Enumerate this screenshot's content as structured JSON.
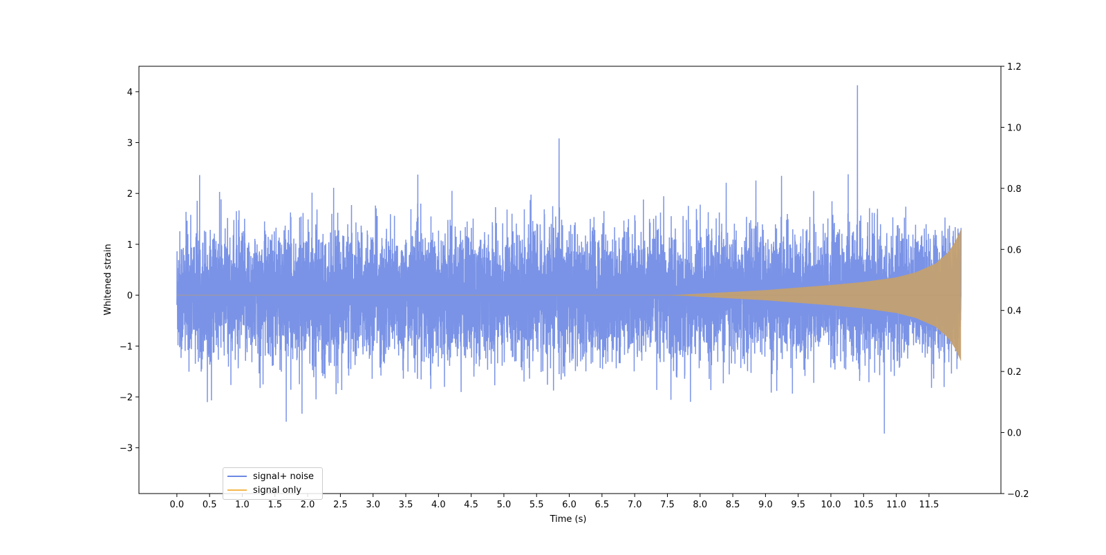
{
  "chart_data": {
    "type": "line",
    "xlabel": "Time (s)",
    "ylabel": "Whitened strain",
    "xlim": [
      -0.58,
      12.6
    ],
    "ylim": [
      -3.9,
      4.5
    ],
    "y2lim": [
      -0.2,
      1.2
    ],
    "x_ticks": [
      "0.0",
      "0.5",
      "1.0",
      "1.5",
      "2.0",
      "2.5",
      "3.0",
      "3.5",
      "4.0",
      "4.5",
      "5.0",
      "5.5",
      "6.0",
      "6.5",
      "7.0",
      "7.5",
      "8.0",
      "8.5",
      "9.0",
      "9.5",
      "10.0",
      "10.5",
      "11.0",
      "11.5"
    ],
    "y_ticks": [
      "−3",
      "−2",
      "−1",
      "0",
      "1",
      "2",
      "3",
      "4"
    ],
    "y2_ticks": [
      "−0.2",
      "0.0",
      "0.2",
      "0.4",
      "0.6",
      "0.8",
      "1.0",
      "1.2"
    ],
    "duration": 12.0,
    "series": [
      {
        "name": "signal+ noise",
        "color": "#6b87e3",
        "description": "Gaussian-like noise with amplitude roughly ±1.5, peaks near 4.1 and troughs near −3.5",
        "approx_envelope": {
          "x": [
            0.0,
            11.99
          ],
          "typical_max": 1.6,
          "extreme_max": 4.1,
          "extreme_min": -3.5
        }
      },
      {
        "name": "signal only",
        "color": "#f5b84a",
        "description": "Chirp signal, near zero until ~7.5 s, amplitude growing to ~1.3 at 12 s",
        "envelope": {
          "x": [
            0,
            7.5,
            8.0,
            9.0,
            10.0,
            10.5,
            11.0,
            11.3,
            11.6,
            11.8,
            11.9,
            11.99
          ],
          "amplitude": [
            0.0,
            0.0,
            0.03,
            0.1,
            0.2,
            0.26,
            0.35,
            0.45,
            0.62,
            0.85,
            1.05,
            1.3
          ]
        }
      }
    ],
    "legend": "bottom-left",
    "grid": false
  }
}
